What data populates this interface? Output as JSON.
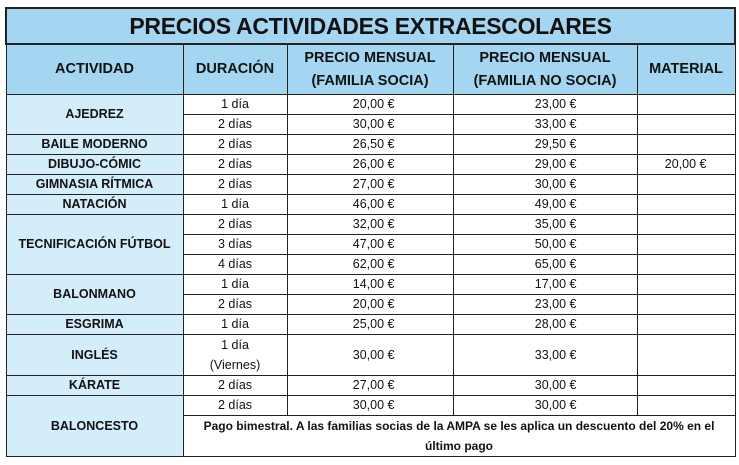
{
  "title": "PRECIOS ACTIVIDADES EXTRAESCOLARES",
  "headers": {
    "actividad": "ACTIVIDAD",
    "duracion": "DURACIÓN",
    "socia_1": "PRECIO MENSUAL",
    "socia_2": "(FAMILIA SOCIA)",
    "nosocia_1": "PRECIO MENSUAL",
    "nosocia_2": "(FAMILIA NO SOCIA)",
    "material": "MATERIAL"
  },
  "activities": {
    "ajedrez": {
      "name": "AJEDREZ",
      "rows": [
        {
          "d": "1 día",
          "s": "20,00 €",
          "n": "23,00 €"
        },
        {
          "d": "2 días",
          "s": "30,00 €",
          "n": "33,00 €"
        }
      ]
    },
    "baile": {
      "name": "BAILE MODERNO",
      "rows": [
        {
          "d": "2 días",
          "s": "26,50 €",
          "n": "29,50 €"
        }
      ]
    },
    "dibujo": {
      "name": "DIBUJO-CÓMIC",
      "rows": [
        {
          "d": "2 días",
          "s": "26,00 €",
          "n": "29,00 €",
          "m": "20,00 €"
        }
      ]
    },
    "gimnasia": {
      "name": "GIMNASIA RÍTMICA",
      "rows": [
        {
          "d": "2 días",
          "s": "27,00 €",
          "n": "30,00 €"
        }
      ]
    },
    "natacion": {
      "name": "NATACIÓN",
      "rows": [
        {
          "d": "1 día",
          "s": "46,00 €",
          "n": "49,00 €"
        }
      ]
    },
    "futbol": {
      "name": "TECNIFICACIÓN FÚTBOL",
      "rows": [
        {
          "d": "2 días",
          "s": "32,00 €",
          "n": "35,00 €"
        },
        {
          "d": "3 días",
          "s": "47,00 €",
          "n": "50,00 €"
        },
        {
          "d": "4 días",
          "s": "62,00 €",
          "n": "65,00 €"
        }
      ]
    },
    "balonmano": {
      "name": "BALONMANO",
      "rows": [
        {
          "d": "1 día",
          "s": "14,00 €",
          "n": "17,00 €"
        },
        {
          "d": "2 días",
          "s": "20,00 €",
          "n": "23,00 €"
        }
      ]
    },
    "esgrima": {
      "name": "ESGRIMA",
      "rows": [
        {
          "d": "1 día",
          "s": "25,00 €",
          "n": "28,00 €"
        }
      ]
    },
    "ingles": {
      "name": "INGLÉS",
      "rows": [
        {
          "d": "1 día",
          "d2": "(Viernes)",
          "s": "30,00 €",
          "n": "33,00 €"
        }
      ]
    },
    "karate": {
      "name": "KÁRATE",
      "rows": [
        {
          "d": "2 días",
          "s": "27,00 €",
          "n": "30,00 €"
        }
      ]
    },
    "baloncesto": {
      "name": "BALONCESTO",
      "rows": [
        {
          "d": "2 días",
          "s": "30,00 €",
          "n": "30,00 €"
        }
      ],
      "note": "Pago bimestral. A las familias socias de la AMPA se les aplica un descuento del 20% en el último pago"
    }
  }
}
